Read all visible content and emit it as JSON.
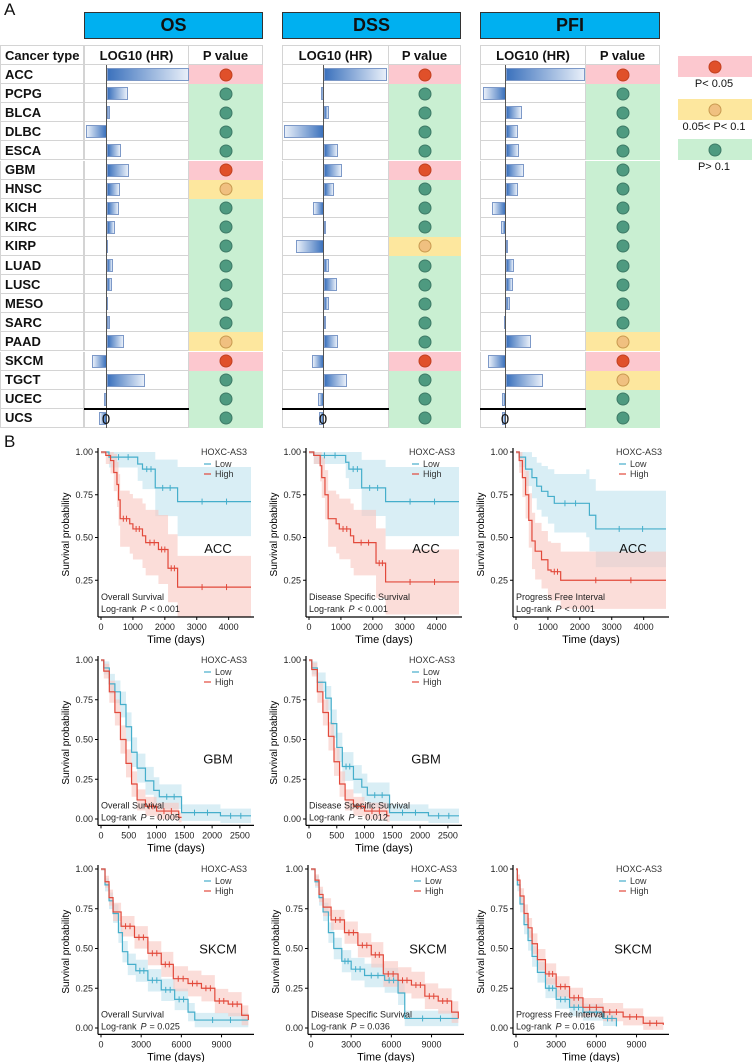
{
  "panel_a": {
    "label": "A",
    "cancer_type_header": "Cancer type",
    "bar_header": "LOG10 (HR)",
    "p_header": "P value",
    "zero_label": "0",
    "groups": [
      "OS",
      "DSS",
      "PFI"
    ],
    "cancers": [
      "ACC",
      "PCPG",
      "BLCA",
      "DLBC",
      "ESCA",
      "GBM",
      "HNSC",
      "KICH",
      "KIRC",
      "KIRP",
      "LUAD",
      "LUSC",
      "MESO",
      "SARC",
      "PAAD",
      "SKCM",
      "TGCT",
      "UCEC",
      "UCS"
    ],
    "log10_hr": {
      "OS": [
        1.03,
        0.26,
        0.04,
        -0.26,
        0.18,
        0.28,
        0.16,
        0.15,
        0.1,
        -0.01,
        0.08,
        0.06,
        -0.01,
        0.04,
        0.21,
        -0.19,
        0.48,
        -0.04,
        -0.1
      ],
      "DSS": [
        0.79,
        -0.04,
        0.06,
        -0.5,
        0.18,
        0.23,
        0.13,
        -0.14,
        0,
        -0.35,
        0.06,
        0.16,
        0.06,
        0.01,
        0.18,
        -0.15,
        0.29,
        -0.08,
        -0.06
      ],
      "PFI": [
        0.99,
        -0.29,
        0.2,
        0.15,
        0.16,
        0.23,
        0.15,
        -0.18,
        -0.06,
        0,
        0.1,
        0.09,
        0.05,
        -0.03,
        0.31,
        -0.23,
        0.46,
        -0.05,
        -0.05
      ]
    },
    "p_class": {
      "OS": [
        "sig",
        "ns",
        "ns",
        "ns",
        "ns",
        "sig",
        "marg",
        "ns",
        "ns",
        "ns",
        "ns",
        "ns",
        "ns",
        "ns",
        "marg",
        "sig",
        "ns",
        "ns",
        "ns"
      ],
      "DSS": [
        "sig",
        "ns",
        "ns",
        "ns",
        "ns",
        "sig",
        "ns",
        "ns",
        "ns",
        "marg",
        "ns",
        "ns",
        "ns",
        "ns",
        "ns",
        "sig",
        "ns",
        "ns",
        "ns"
      ],
      "PFI": [
        "sig",
        "ns",
        "ns",
        "ns",
        "ns",
        "ns",
        "ns",
        "ns",
        "ns",
        "ns",
        "ns",
        "ns",
        "ns",
        "ns",
        "marg",
        "sig",
        "marg",
        "ns",
        "ns"
      ]
    },
    "legend": [
      {
        "class": "sig",
        "label": "P< 0.05"
      },
      {
        "class": "marg",
        "label": "0.05< P< 0.1"
      },
      {
        "class": "ns",
        "label": "P> 0.1"
      }
    ],
    "colors": {
      "sig_bg": "#fcc8cf",
      "sig_dot": "#e0502a",
      "sig_border": "#c2401f",
      "marg_bg": "#fde79e",
      "marg_dot": "#f0c080",
      "marg_border": "#c89a50",
      "ns_bg": "#c9efd2",
      "ns_dot": "#4e9a80",
      "ns_border": "#3d7a66",
      "header_blue": "#00b0f0"
    }
  },
  "panel_b": {
    "label": "B",
    "y_label": "Survival probability",
    "x_label": "Time (days)",
    "legend_title": "HOXC-AS3",
    "low_label": "Low",
    "high_label": "High",
    "logrank_prefix": "Log-rank",
    "p_symbol": "P",
    "colors": {
      "low": "#45aecb",
      "high": "#e2493b",
      "low_band": "#bfe3ef",
      "high_band": "#f8c6bf"
    },
    "plots": [
      {
        "cancer": "ACC",
        "method": "Overall Survival",
        "p_text": "< 0.001",
        "xmax": 4700,
        "xticks": [
          0,
          1000,
          2000,
          3000,
          4000
        ],
        "yticks": [
          "0.25",
          "0.50",
          "0.75",
          "1.00"
        ],
        "ymin": 0.035,
        "ci_k": 0.28,
        "low": [
          [
            0,
            1
          ],
          [
            250,
            0.97
          ],
          [
            1150,
            0.93
          ],
          [
            1300,
            0.9
          ],
          [
            1700,
            0.79
          ],
          [
            2400,
            0.71
          ],
          [
            4700,
            0.71
          ]
        ],
        "high": [
          [
            0,
            1
          ],
          [
            150,
            0.98
          ],
          [
            300,
            0.95
          ],
          [
            400,
            0.88
          ],
          [
            500,
            0.81
          ],
          [
            550,
            0.72
          ],
          [
            600,
            0.61
          ],
          [
            900,
            0.58
          ],
          [
            1000,
            0.55
          ],
          [
            1300,
            0.51
          ],
          [
            1400,
            0.47
          ],
          [
            1800,
            0.43
          ],
          [
            2100,
            0.32
          ],
          [
            2400,
            0.21
          ],
          [
            4700,
            0.21
          ]
        ]
      },
      {
        "cancer": "ACC",
        "method": "Disease Specific Survival",
        "p_text": "< 0.001",
        "xmax": 4700,
        "xticks": [
          0,
          1000,
          2000,
          3000,
          4000
        ],
        "yticks": [
          "0.25",
          "0.50",
          "0.75",
          "1.00"
        ],
        "ymin": 0.035,
        "ci_k": 0.28,
        "low": [
          [
            0,
            1
          ],
          [
            150,
            0.98
          ],
          [
            1150,
            0.94
          ],
          [
            1250,
            0.9
          ],
          [
            1650,
            0.79
          ],
          [
            2400,
            0.71
          ],
          [
            4700,
            0.71
          ]
        ],
        "high": [
          [
            0,
            1
          ],
          [
            150,
            0.98
          ],
          [
            350,
            0.92
          ],
          [
            400,
            0.85
          ],
          [
            500,
            0.75
          ],
          [
            600,
            0.61
          ],
          [
            850,
            0.58
          ],
          [
            950,
            0.55
          ],
          [
            1300,
            0.51
          ],
          [
            1400,
            0.47
          ],
          [
            2100,
            0.35
          ],
          [
            2400,
            0.24
          ],
          [
            4700,
            0.24
          ]
        ]
      },
      {
        "cancer": "ACC",
        "method": "Progress Free Interval",
        "p_text": "< 0.001",
        "xmax": 4700,
        "xticks": [
          0,
          1000,
          2000,
          3000,
          4000
        ],
        "yticks": [
          "0.25",
          "0.50",
          "0.75",
          "1.00"
        ],
        "ymin": 0.035,
        "ci_k": 0.28,
        "low": [
          [
            0,
            1
          ],
          [
            100,
            0.97
          ],
          [
            300,
            0.9
          ],
          [
            500,
            0.85
          ],
          [
            650,
            0.8
          ],
          [
            800,
            0.77
          ],
          [
            1000,
            0.74
          ],
          [
            1200,
            0.7
          ],
          [
            2200,
            0.7
          ],
          [
            2300,
            0.63
          ],
          [
            2500,
            0.55
          ],
          [
            4700,
            0.55
          ]
        ],
        "high": [
          [
            0,
            1
          ],
          [
            100,
            0.95
          ],
          [
            200,
            0.85
          ],
          [
            300,
            0.75
          ],
          [
            400,
            0.6
          ],
          [
            500,
            0.48
          ],
          [
            600,
            0.42
          ],
          [
            800,
            0.37
          ],
          [
            1000,
            0.31
          ],
          [
            1100,
            0.3
          ],
          [
            1400,
            0.25
          ],
          [
            4700,
            0.25
          ]
        ]
      },
      {
        "cancer": "GBM",
        "method": "Overall Survival",
        "p_text": "= 0.005",
        "xmax": 2700,
        "xticks": [
          0,
          500,
          1000,
          1500,
          2000,
          2500
        ],
        "yticks": [
          "0.00",
          "0.25",
          "0.50",
          "0.75",
          "1.00"
        ],
        "ymin": -0.04,
        "ci_k": 0.14,
        "low": [
          [
            0,
            1
          ],
          [
            50,
            0.95
          ],
          [
            150,
            0.85
          ],
          [
            250,
            0.8
          ],
          [
            350,
            0.72
          ],
          [
            450,
            0.58
          ],
          [
            550,
            0.42
          ],
          [
            650,
            0.32
          ],
          [
            800,
            0.24
          ],
          [
            950,
            0.18
          ],
          [
            1050,
            0.14
          ],
          [
            1450,
            0.04
          ],
          [
            2150,
            0.02
          ],
          [
            2700,
            0.02
          ]
        ],
        "high": [
          [
            0,
            1
          ],
          [
            50,
            0.93
          ],
          [
            150,
            0.8
          ],
          [
            250,
            0.67
          ],
          [
            350,
            0.5
          ],
          [
            450,
            0.35
          ],
          [
            550,
            0.22
          ],
          [
            650,
            0.12
          ],
          [
            800,
            0.08
          ],
          [
            1000,
            0.05
          ],
          [
            1400,
            0.01
          ],
          [
            1450,
            0.01
          ]
        ]
      },
      {
        "cancer": "GBM",
        "method": "Disease Specific Survival",
        "p_text": "= 0.012",
        "xmax": 2700,
        "xticks": [
          0,
          500,
          1000,
          1500,
          2000,
          2500
        ],
        "yticks": [
          "0.00",
          "0.25",
          "0.50",
          "0.75",
          "1.00"
        ],
        "ymin": -0.04,
        "ci_k": 0.14,
        "low": [
          [
            0,
            1
          ],
          [
            50,
            0.95
          ],
          [
            150,
            0.86
          ],
          [
            300,
            0.76
          ],
          [
            400,
            0.6
          ],
          [
            500,
            0.45
          ],
          [
            600,
            0.33
          ],
          [
            800,
            0.25
          ],
          [
            950,
            0.2
          ],
          [
            1050,
            0.15
          ],
          [
            1450,
            0.04
          ],
          [
            2150,
            0.02
          ],
          [
            2700,
            0.02
          ]
        ],
        "high": [
          [
            0,
            1
          ],
          [
            50,
            0.94
          ],
          [
            150,
            0.8
          ],
          [
            250,
            0.67
          ],
          [
            350,
            0.52
          ],
          [
            450,
            0.36
          ],
          [
            550,
            0.22
          ],
          [
            650,
            0.12
          ],
          [
            800,
            0.08
          ],
          [
            1000,
            0.05
          ],
          [
            1400,
            0.02
          ],
          [
            1450,
            0.02
          ]
        ]
      },
      {
        "cancer": "SKCM",
        "method": "Overall Survival",
        "p_text": "= 0.025",
        "xmax": 11200,
        "xticks": [
          0,
          3000,
          6000,
          9000
        ],
        "yticks": [
          "0.00",
          "0.25",
          "0.50",
          "0.75",
          "1.00"
        ],
        "ymin": -0.04,
        "ci_k": 0.1,
        "low": [
          [
            0,
            1
          ],
          [
            300,
            0.9
          ],
          [
            600,
            0.8
          ],
          [
            900,
            0.72
          ],
          [
            1300,
            0.6
          ],
          [
            1600,
            0.48
          ],
          [
            2000,
            0.4
          ],
          [
            2600,
            0.36
          ],
          [
            3500,
            0.3
          ],
          [
            4500,
            0.24
          ],
          [
            5500,
            0.18
          ],
          [
            6500,
            0.1
          ],
          [
            7000,
            0.05
          ],
          [
            11000,
            0.05
          ]
        ],
        "high": [
          [
            0,
            1
          ],
          [
            300,
            0.92
          ],
          [
            600,
            0.82
          ],
          [
            900,
            0.73
          ],
          [
            1500,
            0.64
          ],
          [
            2500,
            0.57
          ],
          [
            3500,
            0.47
          ],
          [
            4500,
            0.4
          ],
          [
            5400,
            0.31
          ],
          [
            6500,
            0.28
          ],
          [
            7500,
            0.25
          ],
          [
            8500,
            0.17
          ],
          [
            9500,
            0.15
          ],
          [
            10500,
            0.08
          ],
          [
            11000,
            0.05
          ]
        ]
      },
      {
        "cancer": "SKCM",
        "method": "Disease Specific Survival",
        "p_text": "= 0.036",
        "xmax": 11200,
        "xticks": [
          0,
          3000,
          6000,
          9000
        ],
        "yticks": [
          "0.00",
          "0.25",
          "0.50",
          "0.75",
          "1.00"
        ],
        "ymin": -0.04,
        "ci_k": 0.1,
        "low": [
          [
            0,
            1
          ],
          [
            300,
            0.92
          ],
          [
            600,
            0.82
          ],
          [
            900,
            0.73
          ],
          [
            1300,
            0.6
          ],
          [
            1700,
            0.5
          ],
          [
            2300,
            0.42
          ],
          [
            3000,
            0.37
          ],
          [
            4000,
            0.33
          ],
          [
            5500,
            0.3
          ],
          [
            6500,
            0.22
          ],
          [
            7000,
            0.06
          ],
          [
            11000,
            0.06
          ]
        ],
        "high": [
          [
            0,
            1
          ],
          [
            300,
            0.93
          ],
          [
            600,
            0.84
          ],
          [
            900,
            0.76
          ],
          [
            1500,
            0.68
          ],
          [
            2500,
            0.6
          ],
          [
            3500,
            0.52
          ],
          [
            4500,
            0.46
          ],
          [
            5400,
            0.34
          ],
          [
            6500,
            0.3
          ],
          [
            7500,
            0.27
          ],
          [
            8500,
            0.2
          ],
          [
            9500,
            0.17
          ],
          [
            10500,
            0.1
          ],
          [
            11000,
            0.06
          ]
        ]
      },
      {
        "cancer": "SKCM",
        "method": "Progress Free Interval",
        "p_text": "= 0.016",
        "xmax": 11200,
        "xticks": [
          0,
          3000,
          6000,
          9000
        ],
        "yticks": [
          "0.00",
          "0.25",
          "0.50",
          "0.75",
          "1.00"
        ],
        "ymin": -0.04,
        "ci_k": 0.1,
        "low": [
          [
            0,
            1
          ],
          [
            100,
            0.9
          ],
          [
            300,
            0.78
          ],
          [
            600,
            0.65
          ],
          [
            900,
            0.55
          ],
          [
            1200,
            0.45
          ],
          [
            1600,
            0.35
          ],
          [
            2200,
            0.25
          ],
          [
            3000,
            0.18
          ],
          [
            4000,
            0.13
          ],
          [
            5000,
            0.1
          ],
          [
            6500,
            0.06
          ],
          [
            7500,
            0.01
          ]
        ],
        "high": [
          [
            0,
            1
          ],
          [
            100,
            0.93
          ],
          [
            300,
            0.83
          ],
          [
            600,
            0.72
          ],
          [
            900,
            0.63
          ],
          [
            1200,
            0.53
          ],
          [
            1600,
            0.43
          ],
          [
            2200,
            0.34
          ],
          [
            3000,
            0.26
          ],
          [
            4000,
            0.19
          ],
          [
            5000,
            0.13
          ],
          [
            6500,
            0.1
          ],
          [
            8000,
            0.07
          ],
          [
            9500,
            0.03
          ],
          [
            11000,
            0.02
          ]
        ]
      }
    ]
  }
}
